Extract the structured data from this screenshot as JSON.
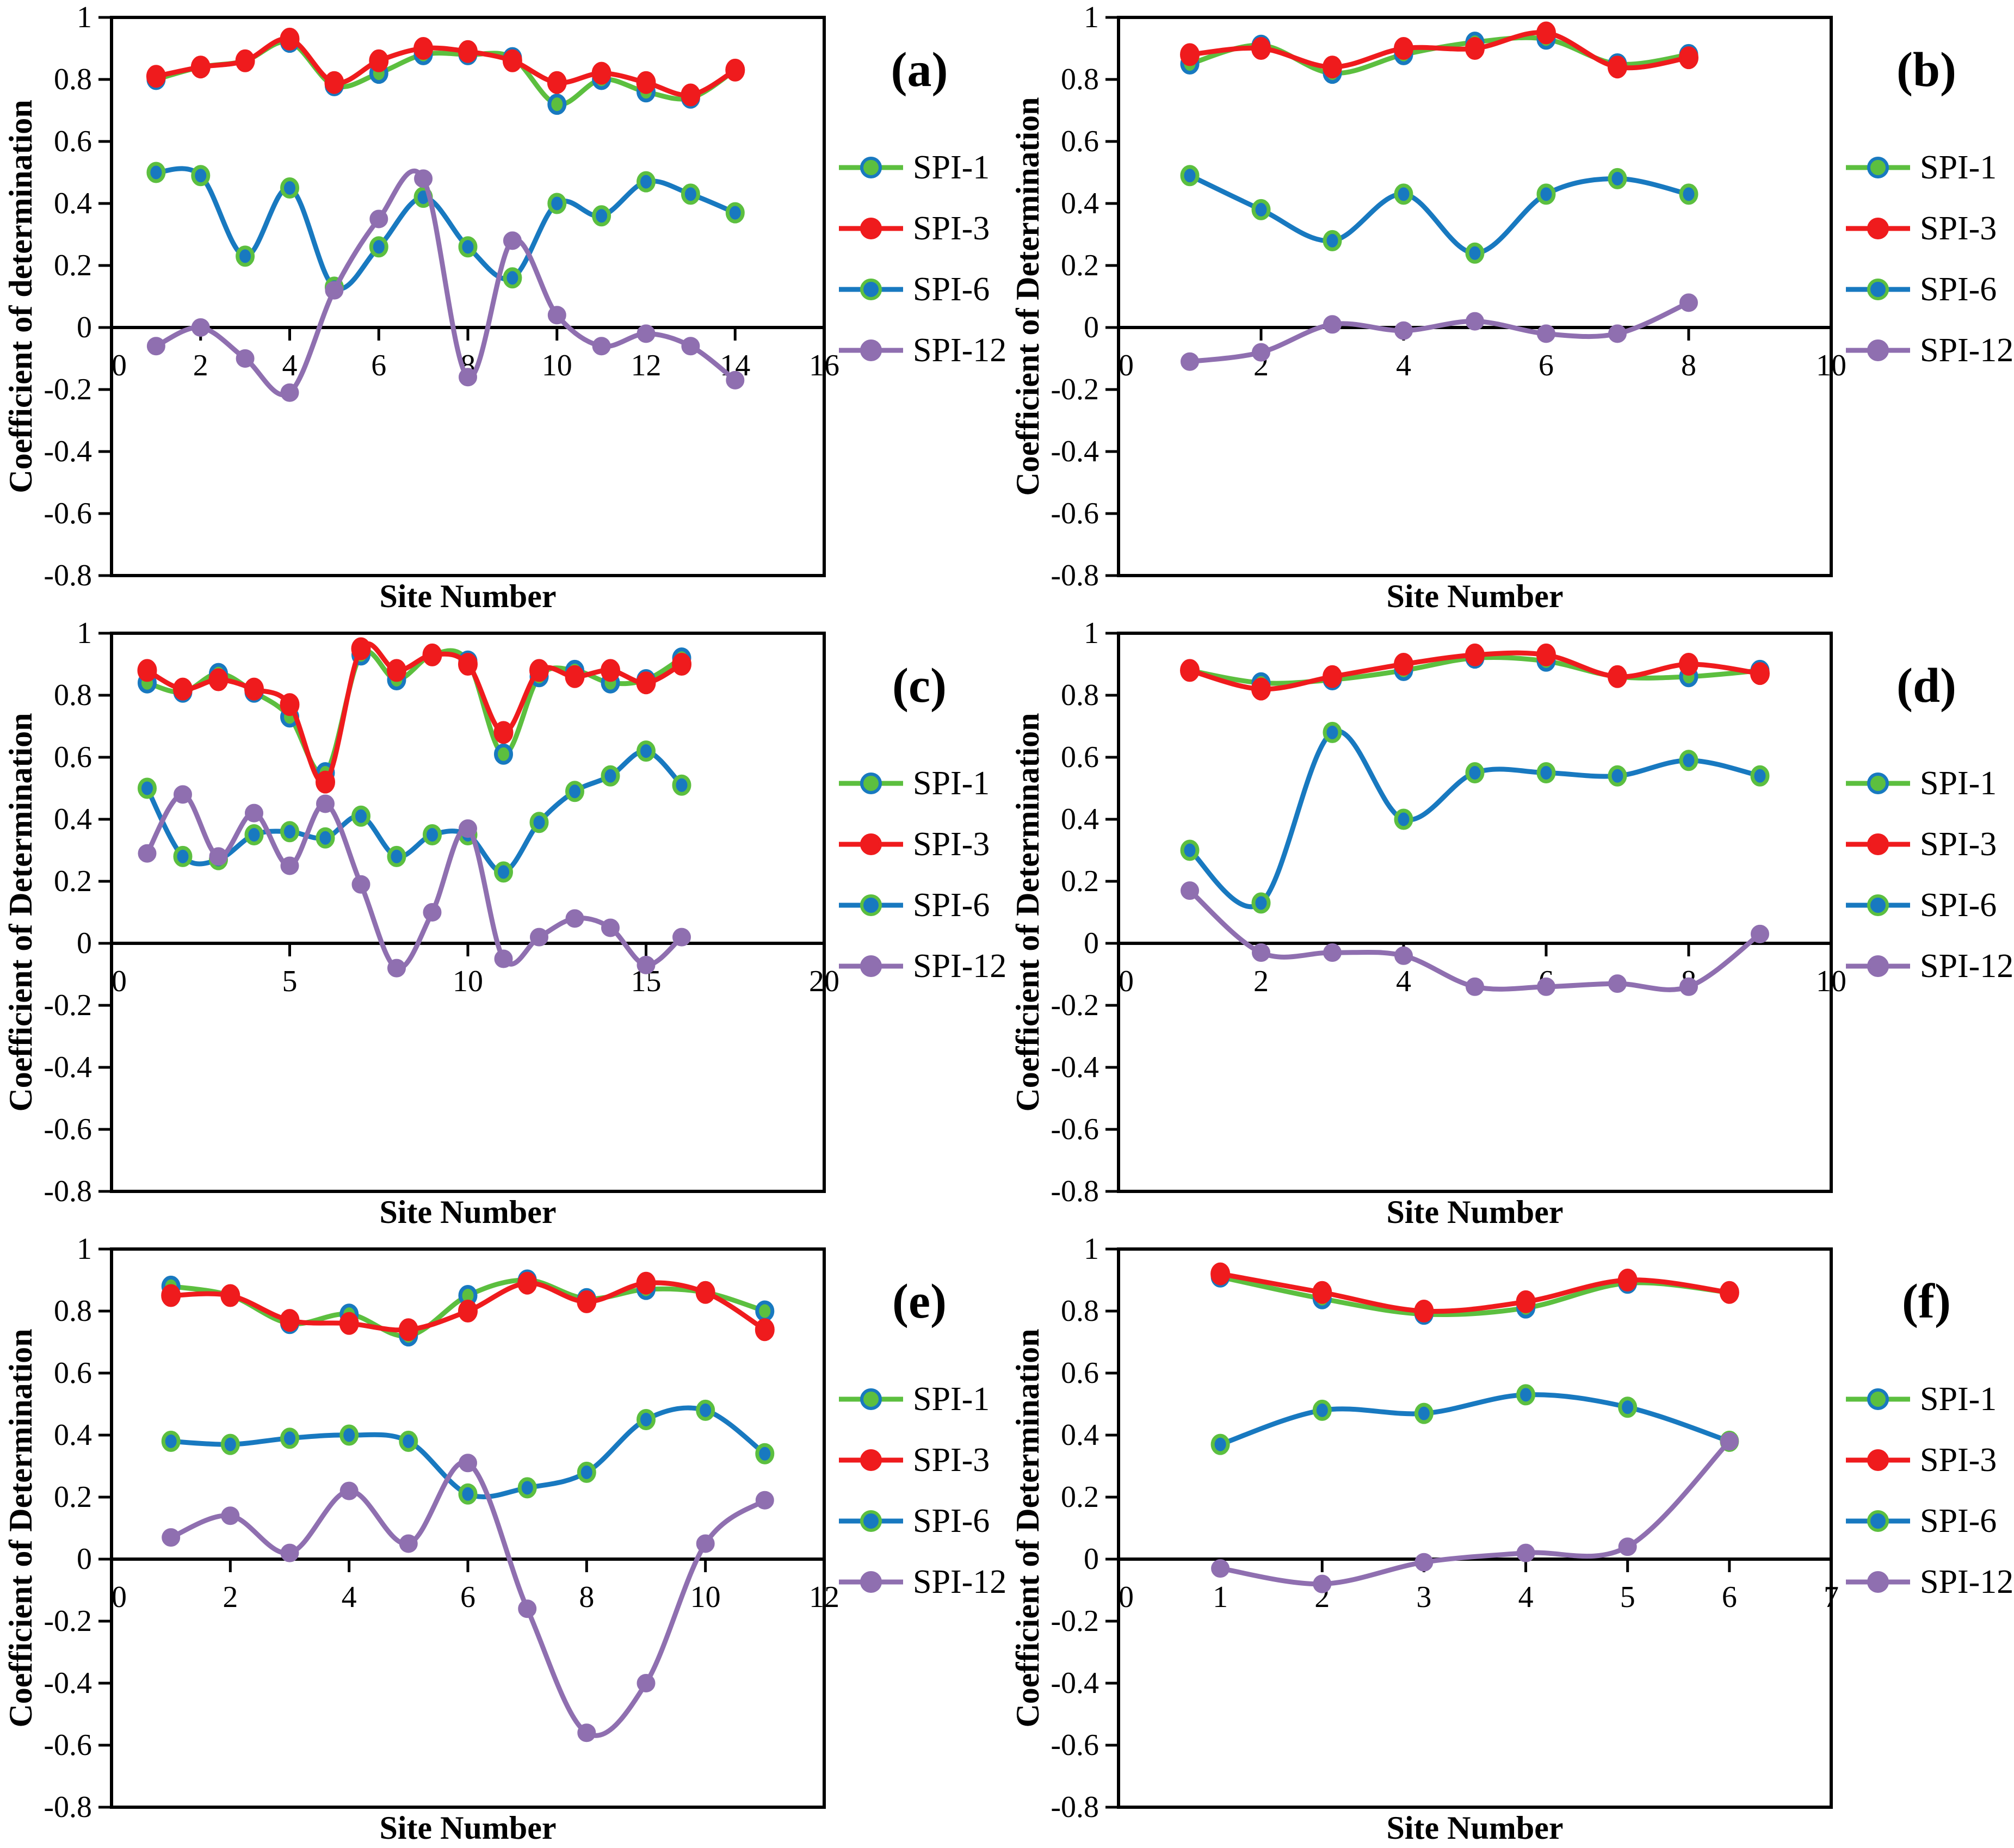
{
  "figure": {
    "background": "#ffffff",
    "text_color": "#000000",
    "xlabel": "Site Number",
    "legend_labels": [
      "SPI-1",
      "SPI-3",
      "SPI-6",
      "SPI-12"
    ],
    "series_style": {
      "SPI-1": {
        "line": "#5CBF3F",
        "marker_fill": "#5CBF3F",
        "marker_edge": "#1879C0"
      },
      "SPI-3": {
        "line": "#EF1B1D",
        "marker_fill": "#EF1B1D",
        "marker_edge": "#EF1B1D"
      },
      "SPI-6": {
        "line": "#1879C0",
        "marker_fill": "#1879C0",
        "marker_edge": "#5CBF3F"
      },
      "SPI-12": {
        "line": "#8F6FB0",
        "marker_fill": "#8F6FB0",
        "marker_edge": "#8F6FB0"
      }
    }
  },
  "chart_data": [
    {
      "type": "line",
      "panel_id": "a",
      "panel_label": "(a)",
      "xlabel": "Site Number",
      "ylabel": "Coefficient of determination",
      "xlim": [
        0,
        16
      ],
      "ylim": [
        -0.8,
        1
      ],
      "xticks": [
        "0",
        "2",
        "4",
        "6",
        "8",
        "10",
        "12",
        "14",
        "16"
      ],
      "yticks": [
        "1",
        "0.8",
        "0.6",
        "0.4",
        "0.2",
        "0",
        "-0.2",
        "-0.4",
        "-0.6",
        "-0.8"
      ],
      "legend_position": "right",
      "grid": false,
      "sites": [
        1,
        2,
        3,
        4,
        5,
        6,
        7,
        8,
        9,
        10,
        11,
        12,
        13,
        14
      ],
      "series": [
        {
          "name": "SPI-1",
          "values": [
            0.8,
            0.84,
            0.86,
            0.92,
            0.78,
            0.82,
            0.88,
            0.88,
            0.87,
            0.72,
            0.8,
            0.76,
            0.74,
            0.83
          ]
        },
        {
          "name": "SPI-3",
          "values": [
            0.81,
            0.84,
            0.86,
            0.93,
            0.79,
            0.86,
            0.9,
            0.89,
            0.86,
            0.79,
            0.82,
            0.79,
            0.75,
            0.83
          ]
        },
        {
          "name": "SPI-6",
          "values": [
            0.5,
            0.49,
            0.23,
            0.45,
            0.13,
            0.26,
            0.42,
            0.26,
            0.16,
            0.4,
            0.36,
            0.47,
            0.43,
            0.37
          ]
        },
        {
          "name": "SPI-12",
          "values": [
            -0.06,
            0.0,
            -0.1,
            -0.21,
            0.12,
            0.35,
            0.48,
            -0.16,
            0.28,
            0.04,
            -0.06,
            -0.02,
            -0.06,
            -0.17
          ]
        }
      ]
    },
    {
      "type": "line",
      "panel_id": "b",
      "panel_label": "(b)",
      "xlabel": "Site Number",
      "ylabel": "Coefficient of Determination",
      "xlim": [
        0,
        10
      ],
      "ylim": [
        -0.8,
        1
      ],
      "xticks": [
        "0",
        "2",
        "4",
        "6",
        "8",
        "10"
      ],
      "yticks": [
        "1",
        "0.8",
        "0.6",
        "0.4",
        "0.2",
        "0",
        "-0.2",
        "-0.4",
        "-0.6",
        "-0.8"
      ],
      "legend_position": "right",
      "grid": false,
      "sites": [
        1,
        2,
        3,
        4,
        5,
        6,
        7,
        8
      ],
      "series": [
        {
          "name": "SPI-1",
          "values": [
            0.85,
            0.91,
            0.82,
            0.88,
            0.92,
            0.93,
            0.85,
            0.88
          ]
        },
        {
          "name": "SPI-3",
          "values": [
            0.88,
            0.9,
            0.84,
            0.9,
            0.9,
            0.95,
            0.84,
            0.87
          ]
        },
        {
          "name": "SPI-6",
          "values": [
            0.49,
            0.38,
            0.28,
            0.43,
            0.24,
            0.43,
            0.48,
            0.43
          ]
        },
        {
          "name": "SPI-12",
          "values": [
            -0.11,
            -0.08,
            0.01,
            -0.01,
            0.02,
            -0.02,
            -0.02,
            0.08
          ]
        }
      ]
    },
    {
      "type": "line",
      "panel_id": "c",
      "panel_label": "(c)",
      "xlabel": "Site Number",
      "ylabel": "Coefficient of Determination",
      "xlim": [
        0,
        20
      ],
      "ylim": [
        -0.8,
        1
      ],
      "xticks": [
        "0",
        "5",
        "10",
        "15",
        "20"
      ],
      "yticks": [
        "1",
        "0.8",
        "0.6",
        "0.4",
        "0.2",
        "0",
        "-0.2",
        "-0.4",
        "-0.6",
        "-0.8"
      ],
      "legend_position": "right",
      "grid": false,
      "sites": [
        1,
        2,
        3,
        4,
        5,
        6,
        7,
        8,
        9,
        10,
        11,
        12,
        13,
        14,
        15,
        16
      ],
      "series": [
        {
          "name": "SPI-1",
          "values": [
            0.84,
            0.81,
            0.87,
            0.81,
            0.73,
            0.55,
            0.93,
            0.85,
            0.93,
            0.91,
            0.61,
            0.86,
            0.88,
            0.84,
            0.85,
            0.92
          ]
        },
        {
          "name": "SPI-3",
          "values": [
            0.88,
            0.82,
            0.85,
            0.82,
            0.77,
            0.52,
            0.95,
            0.88,
            0.93,
            0.9,
            0.68,
            0.88,
            0.86,
            0.88,
            0.84,
            0.9
          ]
        },
        {
          "name": "SPI-6",
          "values": [
            0.5,
            0.28,
            0.27,
            0.35,
            0.36,
            0.34,
            0.41,
            0.28,
            0.35,
            0.35,
            0.23,
            0.39,
            0.49,
            0.54,
            0.62,
            0.51
          ]
        },
        {
          "name": "SPI-12",
          "values": [
            0.29,
            0.48,
            0.28,
            0.42,
            0.25,
            0.45,
            0.19,
            -0.08,
            0.1,
            0.37,
            -0.05,
            0.02,
            0.08,
            0.05,
            -0.07,
            0.02
          ]
        }
      ]
    },
    {
      "type": "line",
      "panel_id": "d",
      "panel_label": "(d)",
      "xlabel": "Site Number",
      "ylabel": "Coefficient of Determination",
      "xlim": [
        0,
        10
      ],
      "ylim": [
        -0.8,
        1
      ],
      "xticks": [
        "0",
        "2",
        "4",
        "6",
        "8",
        "10"
      ],
      "yticks": [
        "1",
        "0.8",
        "0.6",
        "0.4",
        "0.2",
        "0",
        "-0.2",
        "-0.4",
        "-0.6",
        "-0.8"
      ],
      "legend_position": "right",
      "grid": false,
      "sites": [
        1,
        2,
        3,
        4,
        5,
        6,
        7,
        8,
        9
      ],
      "series": [
        {
          "name": "SPI-1",
          "values": [
            0.88,
            0.84,
            0.85,
            0.88,
            0.92,
            0.91,
            0.86,
            0.86,
            0.88
          ]
        },
        {
          "name": "SPI-3",
          "values": [
            0.88,
            0.82,
            0.86,
            0.9,
            0.93,
            0.93,
            0.86,
            0.9,
            0.87
          ]
        },
        {
          "name": "SPI-6",
          "values": [
            0.3,
            0.13,
            0.68,
            0.4,
            0.55,
            0.55,
            0.54,
            0.59,
            0.54
          ]
        },
        {
          "name": "SPI-12",
          "values": [
            0.17,
            -0.03,
            -0.03,
            -0.04,
            -0.14,
            -0.14,
            -0.13,
            -0.14,
            0.03
          ]
        }
      ]
    },
    {
      "type": "line",
      "panel_id": "e",
      "panel_label": "(e)",
      "xlabel": "Site Number",
      "ylabel": "Coefficient of Determination",
      "xlim": [
        0,
        12
      ],
      "ylim": [
        -0.8,
        1
      ],
      "xticks": [
        "0",
        "2",
        "4",
        "6",
        "8",
        "10",
        "12"
      ],
      "yticks": [
        "1",
        "0.8",
        "0.6",
        "0.4",
        "0.2",
        "0",
        "-0.2",
        "-0.4",
        "-0.6",
        "-0.8"
      ],
      "legend_position": "right",
      "grid": false,
      "sites": [
        1,
        2,
        3,
        4,
        5,
        6,
        7,
        8,
        9,
        10,
        11
      ],
      "series": [
        {
          "name": "SPI-1",
          "values": [
            0.88,
            0.85,
            0.76,
            0.79,
            0.72,
            0.85,
            0.9,
            0.84,
            0.87,
            0.86,
            0.8
          ]
        },
        {
          "name": "SPI-3",
          "values": [
            0.85,
            0.85,
            0.77,
            0.76,
            0.74,
            0.8,
            0.89,
            0.83,
            0.89,
            0.86,
            0.74
          ]
        },
        {
          "name": "SPI-6",
          "values": [
            0.38,
            0.37,
            0.39,
            0.4,
            0.38,
            0.21,
            0.23,
            0.28,
            0.45,
            0.48,
            0.34
          ]
        },
        {
          "name": "SPI-12",
          "values": [
            0.07,
            0.14,
            0.02,
            0.22,
            0.05,
            0.31,
            -0.16,
            -0.56,
            -0.4,
            0.05,
            0.19
          ]
        }
      ]
    },
    {
      "type": "line",
      "panel_id": "f",
      "panel_label": "(f)",
      "xlabel": "Site Number",
      "ylabel": "Coefficient of Determination",
      "xlim": [
        0,
        7
      ],
      "ylim": [
        -0.8,
        1
      ],
      "xticks": [
        "0",
        "1",
        "2",
        "3",
        "4",
        "5",
        "6",
        "7"
      ],
      "yticks": [
        "1",
        "0.8",
        "0.6",
        "0.4",
        "0.2",
        "0",
        "-0.2",
        "-0.4",
        "-0.6",
        "-0.8"
      ],
      "legend_position": "right",
      "grid": false,
      "sites": [
        1,
        2,
        3,
        4,
        5,
        6
      ],
      "series": [
        {
          "name": "SPI-1",
          "values": [
            0.91,
            0.84,
            0.79,
            0.81,
            0.89,
            0.86
          ]
        },
        {
          "name": "SPI-3",
          "values": [
            0.92,
            0.86,
            0.8,
            0.83,
            0.9,
            0.86
          ]
        },
        {
          "name": "SPI-6",
          "values": [
            0.37,
            0.48,
            0.47,
            0.53,
            0.49,
            0.38
          ]
        },
        {
          "name": "SPI-12",
          "values": [
            -0.03,
            -0.08,
            -0.01,
            0.02,
            0.04,
            0.38
          ]
        }
      ]
    }
  ]
}
